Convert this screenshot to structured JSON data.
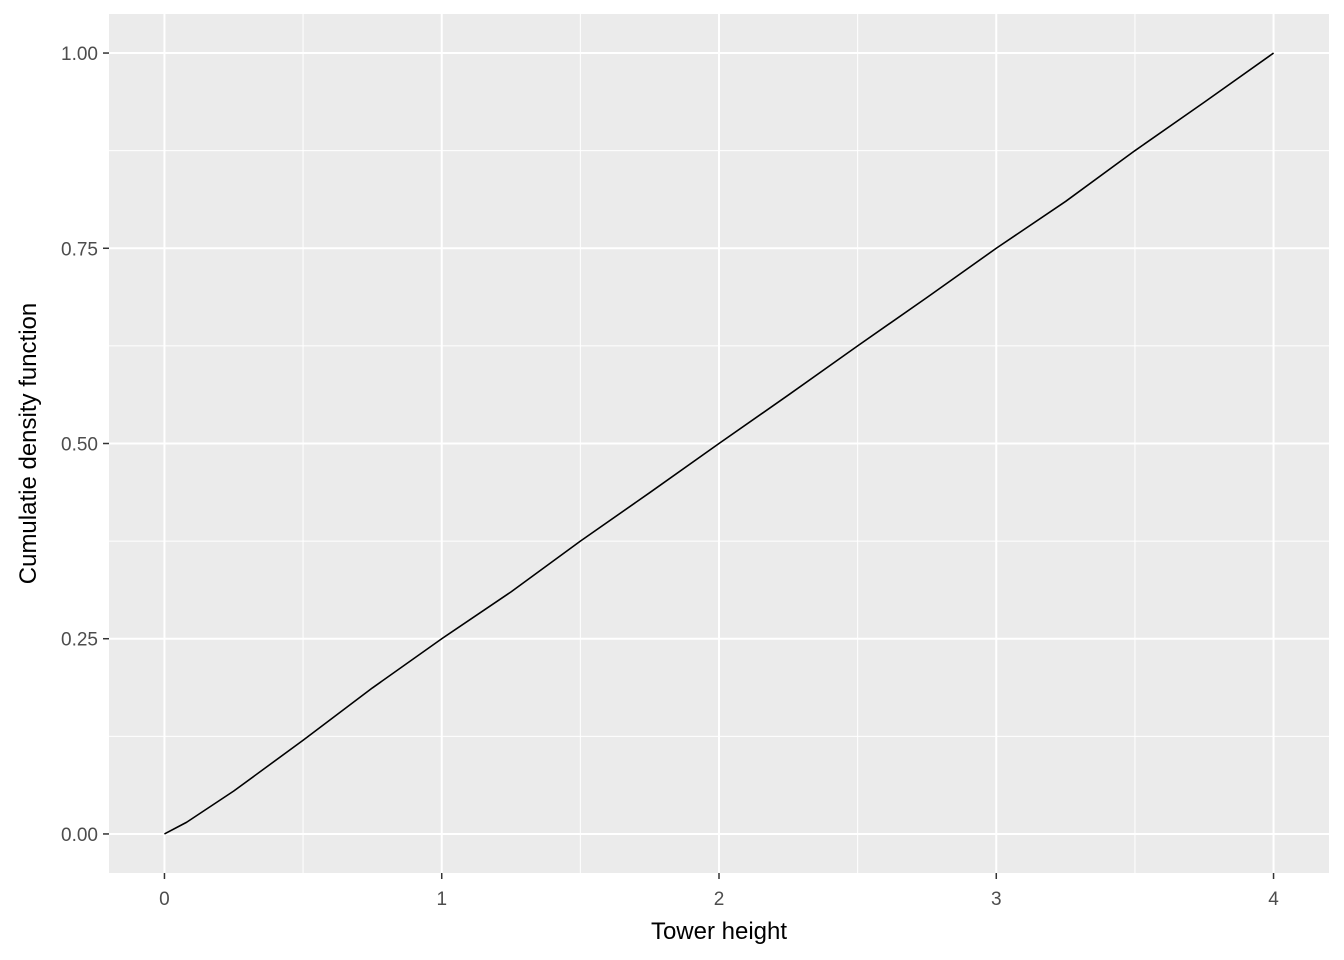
{
  "chart_data": {
    "type": "line",
    "title": "",
    "xlabel": "Tower height",
    "ylabel": "Cumulatie density function",
    "xlim": [
      -0.2,
      4.2
    ],
    "ylim": [
      -0.05,
      1.05
    ],
    "x_ticks": [
      0,
      1,
      2,
      3,
      4
    ],
    "x_tick_labels": [
      "0",
      "1",
      "2",
      "3",
      "4"
    ],
    "x_minor_ticks": [
      0.5,
      1.5,
      2.5,
      3.5
    ],
    "y_ticks": [
      0,
      0.25,
      0.5,
      0.75,
      1.0
    ],
    "y_tick_labels": [
      "0.00",
      "0.25",
      "0.50",
      "0.75",
      "1.00"
    ],
    "y_minor_ticks": [
      0.125,
      0.375,
      0.625,
      0.875
    ],
    "grid": true,
    "panel_background": "#ebebeb",
    "grid_color": "#ffffff",
    "line_color": "#000000",
    "series": [
      {
        "x": [
          0,
          0.08,
          0.25,
          0.5,
          0.75,
          1.0,
          1.25,
          1.5,
          1.75,
          2.0,
          2.25,
          2.5,
          2.75,
          3.0,
          3.25,
          3.5,
          3.75,
          4.0
        ],
        "values": [
          0,
          0.015,
          0.055,
          0.12,
          0.187,
          0.25,
          0.31,
          0.375,
          0.437,
          0.5,
          0.562,
          0.625,
          0.687,
          0.75,
          0.81,
          0.875,
          0.937,
          1.0
        ]
      }
    ]
  }
}
